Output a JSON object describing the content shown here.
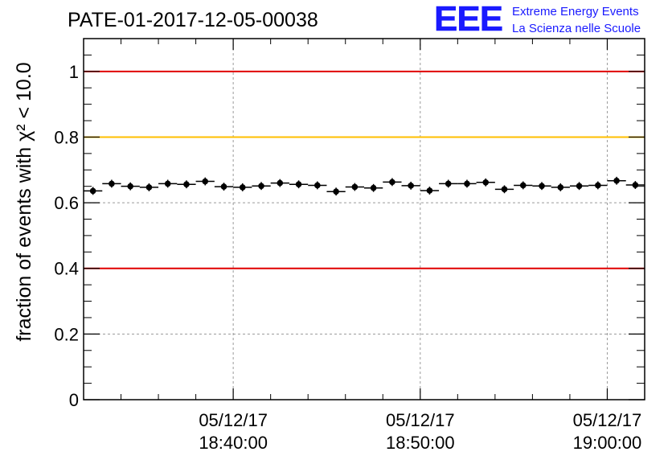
{
  "title": "PATE-01-2017-12-05-00038",
  "logo": {
    "mark": "EEE",
    "line1": "Extreme Energy Events",
    "line2": "La Scienza nelle Scuole",
    "color": "#1a1aff"
  },
  "chart_data": {
    "type": "scatter",
    "title": "PATE-01-2017-12-05-00038",
    "ylabel": "fraction of events with χ² < 10.0",
    "xlabel": "",
    "ylim": [
      0,
      1.1
    ],
    "y_ticks": [
      {
        "value": 0,
        "label": "0"
      },
      {
        "value": 0.2,
        "label": "0.2"
      },
      {
        "value": 0.4,
        "label": "0.4"
      },
      {
        "value": 0.6,
        "label": "0.6"
      },
      {
        "value": 0.8,
        "label": "0.8"
      },
      {
        "value": 1,
        "label": "1"
      }
    ],
    "xlim": [
      "18:32:00",
      "19:02:00"
    ],
    "x_ticks": [
      {
        "time": "18:40:00",
        "date": "05/12/17"
      },
      {
        "time": "18:50:00",
        "date": "05/12/17"
      },
      {
        "time": "19:00:00",
        "date": "05/12/17"
      }
    ],
    "grid": true,
    "reference_lines": [
      {
        "y": 1.0,
        "color": "#e00000"
      },
      {
        "y": 0.8,
        "color": "#ffbf00"
      },
      {
        "y": 0.4,
        "color": "#e00000"
      }
    ],
    "series": [
      {
        "x": [
          "18:32:30",
          "18:33:30",
          "18:34:30",
          "18:35:30",
          "18:36:30",
          "18:37:30",
          "18:38:30",
          "18:39:30",
          "18:40:30",
          "18:41:30",
          "18:42:30",
          "18:43:30",
          "18:44:30",
          "18:45:30",
          "18:46:30",
          "18:47:30",
          "18:48:30",
          "18:49:30",
          "18:50:30",
          "18:51:30",
          "18:52:30",
          "18:53:30",
          "18:54:30",
          "18:55:30",
          "18:56:30",
          "18:57:30",
          "18:58:30",
          "18:59:30",
          "19:00:30",
          "19:01:30"
        ],
        "y": [
          0.636,
          0.658,
          0.65,
          0.647,
          0.658,
          0.656,
          0.665,
          0.649,
          0.647,
          0.651,
          0.66,
          0.656,
          0.653,
          0.634,
          0.648,
          0.645,
          0.663,
          0.652,
          0.637,
          0.658,
          0.658,
          0.662,
          0.641,
          0.653,
          0.651,
          0.647,
          0.651,
          0.653,
          0.667,
          0.654
        ],
        "x_halfwidth_sec": 30,
        "y_err": 0.012,
        "color": "#000000"
      }
    ]
  }
}
